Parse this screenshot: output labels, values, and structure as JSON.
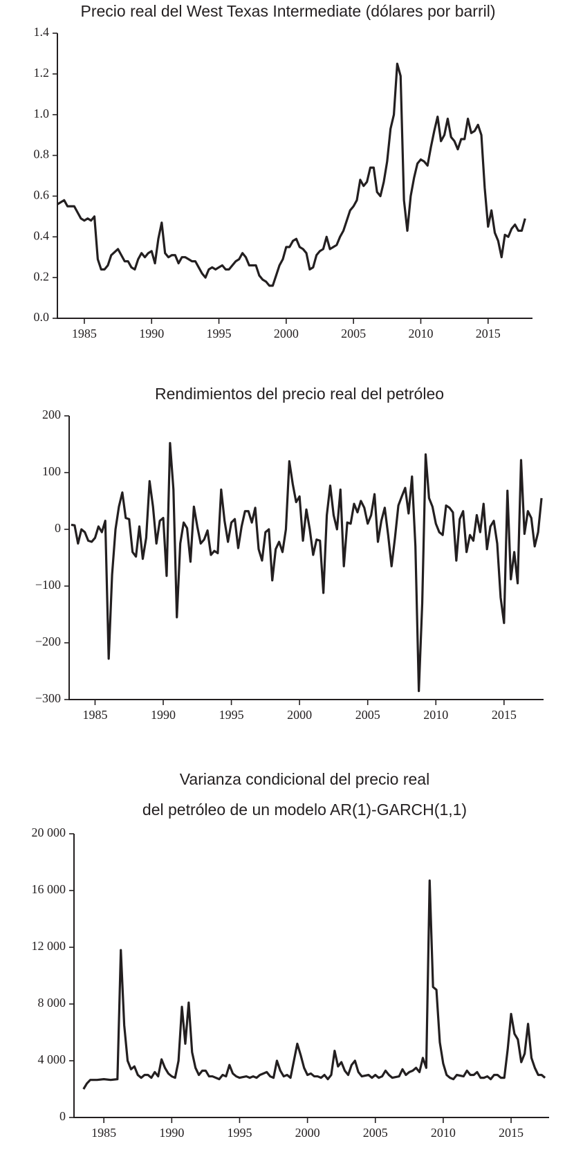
{
  "chart_data": [
    {
      "type": "line",
      "title": "Precio real del West Texas Intermediate (dólares por barril)",
      "color": "#231f20",
      "x": [
        1983.0,
        1983.5,
        1983.75,
        1984.25,
        1984.5,
        1984.75,
        1985.0,
        1985.25,
        1985.5,
        1985.75,
        1986.0,
        1986.25,
        1986.5,
        1986.75,
        1987.0,
        1987.5,
        1987.75,
        1988.0,
        1988.25,
        1988.5,
        1988.75,
        1989.0,
        1989.25,
        1989.5,
        1989.75,
        1990.0,
        1990.25,
        1990.5,
        1990.75,
        1991.0,
        1991.25,
        1991.5,
        1991.75,
        1992.0,
        1992.25,
        1992.5,
        1992.75,
        1993.0,
        1993.25,
        1993.5,
        1993.75,
        1994.0,
        1994.25,
        1994.5,
        1994.75,
        1995.0,
        1995.25,
        1995.5,
        1995.75,
        1996.0,
        1996.25,
        1996.5,
        1996.75,
        1997.0,
        1997.25,
        1997.5,
        1997.75,
        1998.0,
        1998.25,
        1998.5,
        1998.75,
        1999.0,
        1999.25,
        1999.5,
        1999.75,
        2000.0,
        2000.25,
        2000.5,
        2000.75,
        2001.0,
        2001.25,
        2001.5,
        2001.75,
        2002.0,
        2002.25,
        2002.5,
        2002.75,
        2003.0,
        2003.25,
        2003.5,
        2003.75,
        2004.0,
        2004.25,
        2004.5,
        2004.75,
        2005.0,
        2005.25,
        2005.5,
        2005.75,
        2006.0,
        2006.25,
        2006.5,
        2006.75,
        2007.0,
        2007.25,
        2007.5,
        2007.75,
        2008.0,
        2008.25,
        2008.5,
        2008.75,
        2009.0,
        2009.25,
        2009.5,
        2009.75,
        2010.0,
        2010.25,
        2010.5,
        2010.75,
        2011.0,
        2011.25,
        2011.5,
        2011.75,
        2012.0,
        2012.25,
        2012.5,
        2012.75,
        2013.0,
        2013.25,
        2013.5,
        2013.75,
        2014.0,
        2014.25,
        2014.5,
        2014.75,
        2015.0,
        2015.25,
        2015.5,
        2015.75,
        2016.0,
        2016.25,
        2016.5,
        2016.75,
        2017.0,
        2017.25,
        2017.5,
        2017.75
      ],
      "values": [
        0.56,
        0.58,
        0.55,
        0.55,
        0.52,
        0.49,
        0.48,
        0.49,
        0.48,
        0.5,
        0.29,
        0.24,
        0.24,
        0.26,
        0.31,
        0.34,
        0.31,
        0.28,
        0.28,
        0.25,
        0.24,
        0.29,
        0.32,
        0.3,
        0.32,
        0.33,
        0.27,
        0.39,
        0.47,
        0.32,
        0.3,
        0.31,
        0.31,
        0.27,
        0.3,
        0.3,
        0.29,
        0.28,
        0.28,
        0.25,
        0.22,
        0.2,
        0.24,
        0.25,
        0.24,
        0.25,
        0.26,
        0.24,
        0.24,
        0.26,
        0.28,
        0.29,
        0.32,
        0.3,
        0.26,
        0.26,
        0.26,
        0.21,
        0.19,
        0.18,
        0.16,
        0.16,
        0.21,
        0.26,
        0.29,
        0.35,
        0.35,
        0.38,
        0.39,
        0.35,
        0.34,
        0.32,
        0.24,
        0.25,
        0.31,
        0.33,
        0.34,
        0.4,
        0.34,
        0.35,
        0.36,
        0.4,
        0.43,
        0.48,
        0.53,
        0.55,
        0.58,
        0.68,
        0.65,
        0.67,
        0.74,
        0.74,
        0.62,
        0.6,
        0.67,
        0.77,
        0.93,
        1.0,
        1.25,
        1.19,
        0.58,
        0.43,
        0.6,
        0.69,
        0.76,
        0.78,
        0.77,
        0.75,
        0.84,
        0.92,
        0.99,
        0.87,
        0.9,
        0.98,
        0.89,
        0.87,
        0.83,
        0.88,
        0.88,
        0.98,
        0.91,
        0.92,
        0.95,
        0.9,
        0.64,
        0.45,
        0.53,
        0.42,
        0.38,
        0.3,
        0.41,
        0.4,
        0.44,
        0.46,
        0.43,
        0.43,
        0.49
      ],
      "xlim": [
        1983.0,
        2018.3
      ],
      "ylim": [
        0,
        1.4
      ],
      "xticks": [
        1985,
        1990,
        1995,
        2000,
        2005,
        2010,
        2015
      ],
      "yticks": [
        {
          "value": 0,
          "label": "0.0"
        },
        0.2,
        0.4,
        0.6,
        0.8,
        {
          "value": 1,
          "label": "1.0"
        },
        1.2,
        1.4
      ]
    },
    {
      "type": "line",
      "title": "Rendimientos del precio real del petróleo",
      "color": "#231f20",
      "x": [
        1983.25,
        1983.5,
        1983.75,
        1984.0,
        1984.25,
        1984.5,
        1984.75,
        1985.0,
        1985.25,
        1985.5,
        1985.75,
        1986.0,
        1986.25,
        1986.5,
        1986.75,
        1987.0,
        1987.25,
        1987.5,
        1987.75,
        1988.0,
        1988.25,
        1988.5,
        1988.75,
        1989.0,
        1989.25,
        1989.5,
        1989.75,
        1990.0,
        1990.25,
        1990.5,
        1990.75,
        1991.0,
        1991.25,
        1991.5,
        1991.75,
        1992.0,
        1992.25,
        1992.5,
        1992.75,
        1993.0,
        1993.25,
        1993.5,
        1993.75,
        1994.0,
        1994.25,
        1994.5,
        1994.75,
        1995.0,
        1995.25,
        1995.5,
        1995.75,
        1996.0,
        1996.25,
        1996.5,
        1996.75,
        1997.0,
        1997.25,
        1997.5,
        1997.75,
        1998.0,
        1998.25,
        1998.5,
        1998.75,
        1999.0,
        1999.25,
        1999.5,
        1999.75,
        2000.0,
        2000.25,
        2000.5,
        2000.75,
        2001.0,
        2001.25,
        2001.5,
        2001.75,
        2002.0,
        2002.25,
        2002.5,
        2002.75,
        2003.0,
        2003.25,
        2003.5,
        2003.75,
        2004.0,
        2004.25,
        2004.5,
        2004.75,
        2005.0,
        2005.25,
        2005.5,
        2005.75,
        2006.0,
        2006.25,
        2006.5,
        2006.75,
        2007.0,
        2007.25,
        2007.5,
        2007.75,
        2008.0,
        2008.25,
        2008.5,
        2008.75,
        2009.0,
        2009.25,
        2009.5,
        2009.75,
        2010.0,
        2010.25,
        2010.5,
        2010.75,
        2011.0,
        2011.25,
        2011.5,
        2011.75,
        2012.0,
        2012.25,
        2012.5,
        2012.75,
        2013.0,
        2013.25,
        2013.5,
        2013.75,
        2014.0,
        2014.25,
        2014.5,
        2014.75,
        2015.0,
        2015.25,
        2015.5,
        2015.75,
        2016.0,
        2016.25,
        2016.5,
        2016.75,
        2017.0,
        2017.25,
        2017.5,
        2017.75
      ],
      "values": [
        8,
        7,
        -25,
        0,
        -5,
        -20,
        -22,
        -15,
        5,
        -5,
        15,
        -228,
        -80,
        0,
        40,
        65,
        20,
        18,
        -40,
        -48,
        5,
        -52,
        -15,
        85,
        40,
        -25,
        15,
        20,
        -82,
        152,
        70,
        -155,
        -25,
        12,
        2,
        -57,
        40,
        5,
        -25,
        -18,
        -2,
        -45,
        -38,
        -42,
        70,
        15,
        -22,
        12,
        18,
        -33,
        5,
        32,
        32,
        12,
        38,
        -35,
        -55,
        -5,
        0,
        -90,
        -35,
        -22,
        -40,
        0,
        120,
        80,
        48,
        58,
        -20,
        35,
        0,
        -45,
        -18,
        -20,
        -112,
        25,
        77,
        25,
        0,
        70,
        -65,
        12,
        10,
        45,
        30,
        50,
        38,
        10,
        25,
        62,
        -22,
        15,
        38,
        -10,
        -65,
        -15,
        42,
        58,
        73,
        28,
        93,
        -30,
        -285,
        -130,
        132,
        55,
        40,
        10,
        -5,
        -10,
        42,
        38,
        30,
        -55,
        18,
        32,
        -40,
        -10,
        -20,
        25,
        -5,
        45,
        -35,
        5,
        15,
        -25,
        -120,
        -165,
        68,
        -88,
        -40,
        -95,
        122,
        -8,
        32,
        20,
        -30,
        -5,
        55
      ],
      "xlim": [
        1983.1,
        2017.9
      ],
      "ylim": [
        -300,
        200
      ],
      "xticks": [
        1985,
        1990,
        1995,
        2000,
        2005,
        2010,
        2015
      ],
      "yticks": [
        {
          "value": -300,
          "label": "−300"
        },
        {
          "value": -200,
          "label": "−200"
        },
        {
          "value": -100,
          "label": "−100"
        },
        0,
        100,
        200
      ]
    },
    {
      "type": "line",
      "title": "Varianza condicional del precio real",
      "subtitle": "del petróleo de un modelo AR(1)-GARCH(1,1)",
      "color": "#231f20",
      "x": [
        1983.5,
        1983.75,
        1984.0,
        1984.5,
        1985.0,
        1985.5,
        1986.0,
        1986.25,
        1986.5,
        1986.75,
        1987.0,
        1987.25,
        1987.5,
        1987.75,
        1988.0,
        1988.25,
        1988.5,
        1988.75,
        1989.0,
        1989.25,
        1989.5,
        1989.75,
        1990.0,
        1990.25,
        1990.5,
        1990.75,
        1991.0,
        1991.25,
        1991.5,
        1991.75,
        1992.0,
        1992.25,
        1992.5,
        1992.75,
        1993.0,
        1993.5,
        1993.75,
        1994.0,
        1994.25,
        1994.5,
        1994.75,
        1995.0,
        1995.5,
        1995.75,
        1996.0,
        1996.25,
        1996.5,
        1997.0,
        1997.25,
        1997.5,
        1997.75,
        1998.0,
        1998.25,
        1998.5,
        1998.75,
        1999.25,
        1999.5,
        1999.75,
        2000.0,
        2000.25,
        2000.5,
        2000.75,
        2001.0,
        2001.25,
        2001.5,
        2001.75,
        2002.0,
        2002.25,
        2002.5,
        2002.75,
        2003.0,
        2003.25,
        2003.5,
        2003.75,
        2004.0,
        2004.5,
        2004.75,
        2005.0,
        2005.25,
        2005.5,
        2005.75,
        2006.0,
        2006.25,
        2006.75,
        2007.0,
        2007.25,
        2007.5,
        2007.75,
        2008.0,
        2008.25,
        2008.5,
        2008.75,
        2009.0,
        2009.25,
        2009.5,
        2009.75,
        2010.0,
        2010.25,
        2010.5,
        2010.75,
        2011.0,
        2011.5,
        2011.75,
        2012.0,
        2012.25,
        2012.5,
        2012.75,
        2013.0,
        2013.25,
        2013.5,
        2013.75,
        2014.0,
        2014.25,
        2014.5,
        2014.75,
        2015.0,
        2015.25,
        2015.5,
        2015.75,
        2016.0,
        2016.25,
        2016.5,
        2016.75,
        2017.0,
        2017.25,
        2017.5
      ],
      "values": [
        2000,
        2400,
        2650,
        2650,
        2700,
        2650,
        2700,
        11800,
        6500,
        4000,
        3400,
        3600,
        3000,
        2800,
        3000,
        3000,
        2800,
        3200,
        2900,
        4100,
        3500,
        3100,
        2900,
        2800,
        4000,
        7800,
        5200,
        8100,
        4600,
        3500,
        3000,
        3300,
        3300,
        2900,
        2900,
        2700,
        3000,
        2900,
        3700,
        3100,
        2900,
        2800,
        2900,
        2800,
        2900,
        2800,
        3000,
        3200,
        2900,
        2800,
        4000,
        3300,
        2900,
        3000,
        2800,
        5200,
        4400,
        3500,
        3000,
        3100,
        2900,
        2900,
        2800,
        3000,
        2700,
        3000,
        4700,
        3600,
        3900,
        3300,
        3000,
        3700,
        4000,
        3200,
        2900,
        3000,
        2800,
        3000,
        2800,
        2900,
        3300,
        3000,
        2800,
        2900,
        3400,
        3000,
        3200,
        3300,
        3500,
        3200,
        4200,
        3500,
        16700,
        9200,
        9000,
        5300,
        3800,
        3000,
        2800,
        2700,
        3000,
        2900,
        3300,
        3000,
        3000,
        3200,
        2800,
        2800,
        2900,
        2700,
        3000,
        3000,
        2800,
        2800,
        4800,
        7300,
        5900,
        5500,
        3900,
        4500,
        6600,
        4200,
        3500,
        3000,
        3000,
        2800
      ],
      "xlim": [
        1982.8,
        2017.8
      ],
      "ylim": [
        0,
        20000
      ],
      "xticks": [
        1985,
        1990,
        1995,
        2000,
        2005,
        2010,
        2015
      ],
      "yticks": [
        0,
        {
          "value": 4000,
          "label": "4 000"
        },
        {
          "value": 8000,
          "label": "8 000"
        },
        {
          "value": 12000,
          "label": "12 000"
        },
        {
          "value": 16000,
          "label": "16 000"
        },
        {
          "value": 20000,
          "label": "20 000"
        }
      ]
    }
  ]
}
